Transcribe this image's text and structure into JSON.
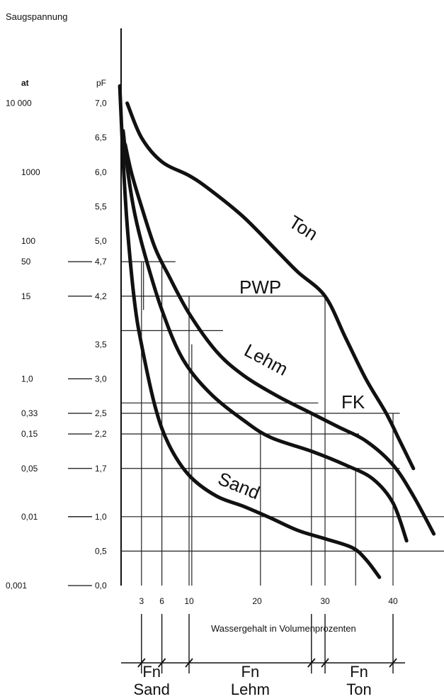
{
  "chart_data": {
    "type": "line",
    "title": "",
    "ylabel": "Saugspannung",
    "xlabel": "Wassergehalt in Volumenprozenten",
    "y_unit_left": "at",
    "y_unit_right": "pF",
    "y_ticks_pF": [
      {
        "pF": 7.0,
        "label": "7,0",
        "at": "10 000"
      },
      {
        "pF": 6.5,
        "label": "6,5",
        "at": ""
      },
      {
        "pF": 6.0,
        "label": "6,0",
        "at": "1000"
      },
      {
        "pF": 5.5,
        "label": "5,5",
        "at": ""
      },
      {
        "pF": 5.0,
        "label": "5,0",
        "at": "100"
      },
      {
        "pF": 4.7,
        "label": "4,7",
        "at": "50"
      },
      {
        "pF": 4.2,
        "label": "4,2",
        "at": "15"
      },
      {
        "pF": 3.5,
        "label": "3,5",
        "at": ""
      },
      {
        "pF": 3.0,
        "label": "3,0",
        "at": "1,0"
      },
      {
        "pF": 2.5,
        "label": "2,5",
        "at": "0,33"
      },
      {
        "pF": 2.2,
        "label": "2,2",
        "at": "0,15"
      },
      {
        "pF": 1.7,
        "label": "1,7",
        "at": "0,05"
      },
      {
        "pF": 1.0,
        "label": "1,0",
        "at": "0,01"
      },
      {
        "pF": 0.5,
        "label": "0,5",
        "at": ""
      },
      {
        "pF": 0.0,
        "label": "0,0",
        "at": "0,001"
      }
    ],
    "x_ticks": [
      {
        "x": 3,
        "label": "3"
      },
      {
        "x": 6,
        "label": "6"
      },
      {
        "x": 10,
        "label": "10"
      },
      {
        "x": 20,
        "label": "20"
      },
      {
        "x": 30,
        "label": "30"
      },
      {
        "x": 40,
        "label": "40"
      }
    ],
    "ylim": [
      0,
      7.3
    ],
    "xlim": [
      -0.3,
      49
    ],
    "series": [
      {
        "name": "Ton",
        "points": [
          [
            0.9,
            7.0
          ],
          [
            3,
            6.5
          ],
          [
            6,
            6.15
          ],
          [
            10,
            5.95
          ],
          [
            13,
            5.75
          ],
          [
            18,
            5.35
          ],
          [
            23,
            4.85
          ],
          [
            26,
            4.55
          ],
          [
            30,
            4.2
          ],
          [
            33,
            3.6
          ],
          [
            36,
            3.0
          ],
          [
            39,
            2.5
          ],
          [
            41,
            2.1
          ],
          [
            43,
            1.7
          ]
        ]
      },
      {
        "name": "Lehm",
        "points": [
          [
            0.6,
            6.4
          ],
          [
            1.5,
            6.0
          ],
          [
            3,
            5.5
          ],
          [
            5,
            4.9
          ],
          [
            7,
            4.5
          ],
          [
            10,
            3.95
          ],
          [
            14,
            3.4
          ],
          [
            18,
            3.05
          ],
          [
            23,
            2.75
          ],
          [
            28,
            2.5
          ],
          [
            32,
            2.3
          ],
          [
            36,
            2.1
          ],
          [
            40,
            1.75
          ],
          [
            43,
            1.3
          ],
          [
            46,
            0.75
          ]
        ]
      },
      {
        "name": "",
        "points": [
          [
            0.3,
            6.6
          ],
          [
            1,
            6.0
          ],
          [
            2,
            5.4
          ],
          [
            3.5,
            4.8
          ],
          [
            6,
            4.0
          ],
          [
            9,
            3.3
          ],
          [
            13,
            2.8
          ],
          [
            18,
            2.4
          ],
          [
            22,
            2.15
          ],
          [
            28,
            1.95
          ],
          [
            33,
            1.75
          ],
          [
            37,
            1.55
          ],
          [
            40,
            1.2
          ],
          [
            42,
            0.65
          ]
        ]
      },
      {
        "name": "Sand",
        "points": [
          [
            -0.2,
            7.25
          ],
          [
            0.4,
            6.0
          ],
          [
            1,
            5.1
          ],
          [
            2,
            4.1
          ],
          [
            3,
            3.5
          ],
          [
            5,
            2.6
          ],
          [
            7,
            2.05
          ],
          [
            10,
            1.6
          ],
          [
            14,
            1.3
          ],
          [
            18,
            1.15
          ],
          [
            22,
            0.98
          ],
          [
            26,
            0.8
          ],
          [
            30,
            0.68
          ],
          [
            34,
            0.55
          ],
          [
            36,
            0.38
          ],
          [
            38,
            0.12
          ]
        ]
      }
    ],
    "guide_lines": [
      {
        "pF": 4.7,
        "x_from": 0,
        "x_to": 8
      },
      {
        "pF": 4.2,
        "x_from": 0,
        "x_to": 30
      },
      {
        "pF": 3.7,
        "x_from": 0,
        "x_to": 15
      },
      {
        "pF": 2.65,
        "x_from": 0,
        "x_to": 29
      },
      {
        "pF": 2.5,
        "x_from": 0,
        "x_to": 41
      },
      {
        "pF": 2.2,
        "x_from": 0,
        "x_to": 35
      },
      {
        "pF": 1.7,
        "x_from": 0,
        "x_to": 41
      },
      {
        "pF": 1.0,
        "x_from": 0,
        "x_to": 48
      },
      {
        "pF": 0.5,
        "x_from": 0,
        "x_to": 48
      }
    ],
    "drop_lines": [
      {
        "x": 3,
        "pF_from": 0,
        "pF_to": 4.7
      },
      {
        "x": 3.3,
        "pF_from": 4.0,
        "pF_to": 4.7
      },
      {
        "x": 6,
        "pF_from": 0,
        "pF_to": 4.7
      },
      {
        "x": 10,
        "pF_from": 0,
        "pF_to": 4.2
      },
      {
        "x": 10.4,
        "pF_from": 0,
        "pF_to": 3.5
      },
      {
        "x": 20.5,
        "pF_from": 0,
        "pF_to": 2.2
      },
      {
        "x": 28,
        "pF_from": 0,
        "pF_to": 2.5
      },
      {
        "x": 30,
        "pF_from": 0,
        "pF_to": 4.2
      },
      {
        "x": 34.5,
        "pF_from": 0,
        "pF_to": 1.7
      },
      {
        "x": 40,
        "pF_from": 0,
        "pF_to": 2.5
      }
    ],
    "annotations": {
      "pwp": "PWP",
      "fk": "FK",
      "fn_sand": [
        "Fn",
        "Sand"
      ],
      "fn_lehm": [
        "Fn",
        "Lehm"
      ],
      "fn_ton": [
        "Fn",
        "Ton"
      ]
    },
    "fn_ranges": [
      {
        "key": "fn_sand",
        "from": 3,
        "to": 6
      },
      {
        "key": "fn_lehm",
        "from": 10,
        "to": 28
      },
      {
        "key": "fn_ton",
        "from": 30,
        "to": 40
      }
    ]
  }
}
